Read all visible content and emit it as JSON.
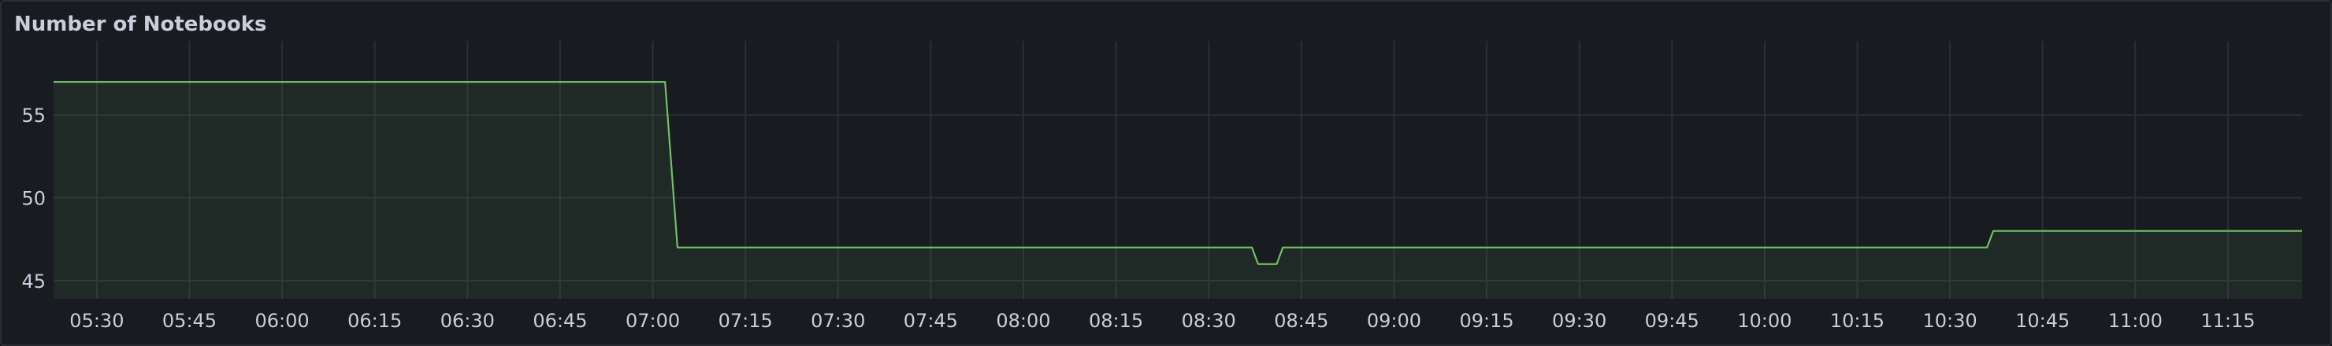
{
  "panel": {
    "title": "Number of Notebooks"
  },
  "colors": {
    "background": "#181b1f",
    "line": "#73bf69",
    "fill": "#1f2a24",
    "grid": "#2b2e34",
    "text": "#ccccdc"
  },
  "chart_data": {
    "type": "area",
    "title": "Number of Notebooks",
    "xlabel": "",
    "ylabel": "",
    "x_tick_labels": [
      "05:30",
      "05:45",
      "06:00",
      "06:15",
      "06:30",
      "06:45",
      "07:00",
      "07:15",
      "07:30",
      "07:45",
      "08:00",
      "08:15",
      "08:30",
      "08:45",
      "09:00",
      "09:15",
      "09:30",
      "09:45",
      "10:00",
      "10:15",
      "10:30",
      "10:45",
      "11:00",
      "11:15"
    ],
    "y_ticks": [
      45,
      50,
      55
    ],
    "ylim": [
      43.9,
      59
    ],
    "xlim": [
      "05:23",
      "11:27"
    ],
    "grid": true,
    "legend": "none",
    "series": [
      {
        "name": "",
        "points": [
          [
            "05:23",
            57
          ],
          [
            "07:02",
            57
          ],
          [
            "07:04",
            47
          ],
          [
            "08:37",
            47
          ],
          [
            "08:38",
            46
          ],
          [
            "08:41",
            46
          ],
          [
            "08:42",
            47
          ],
          [
            "10:36",
            47
          ],
          [
            "10:37",
            48
          ],
          [
            "11:27",
            48
          ]
        ]
      }
    ]
  }
}
